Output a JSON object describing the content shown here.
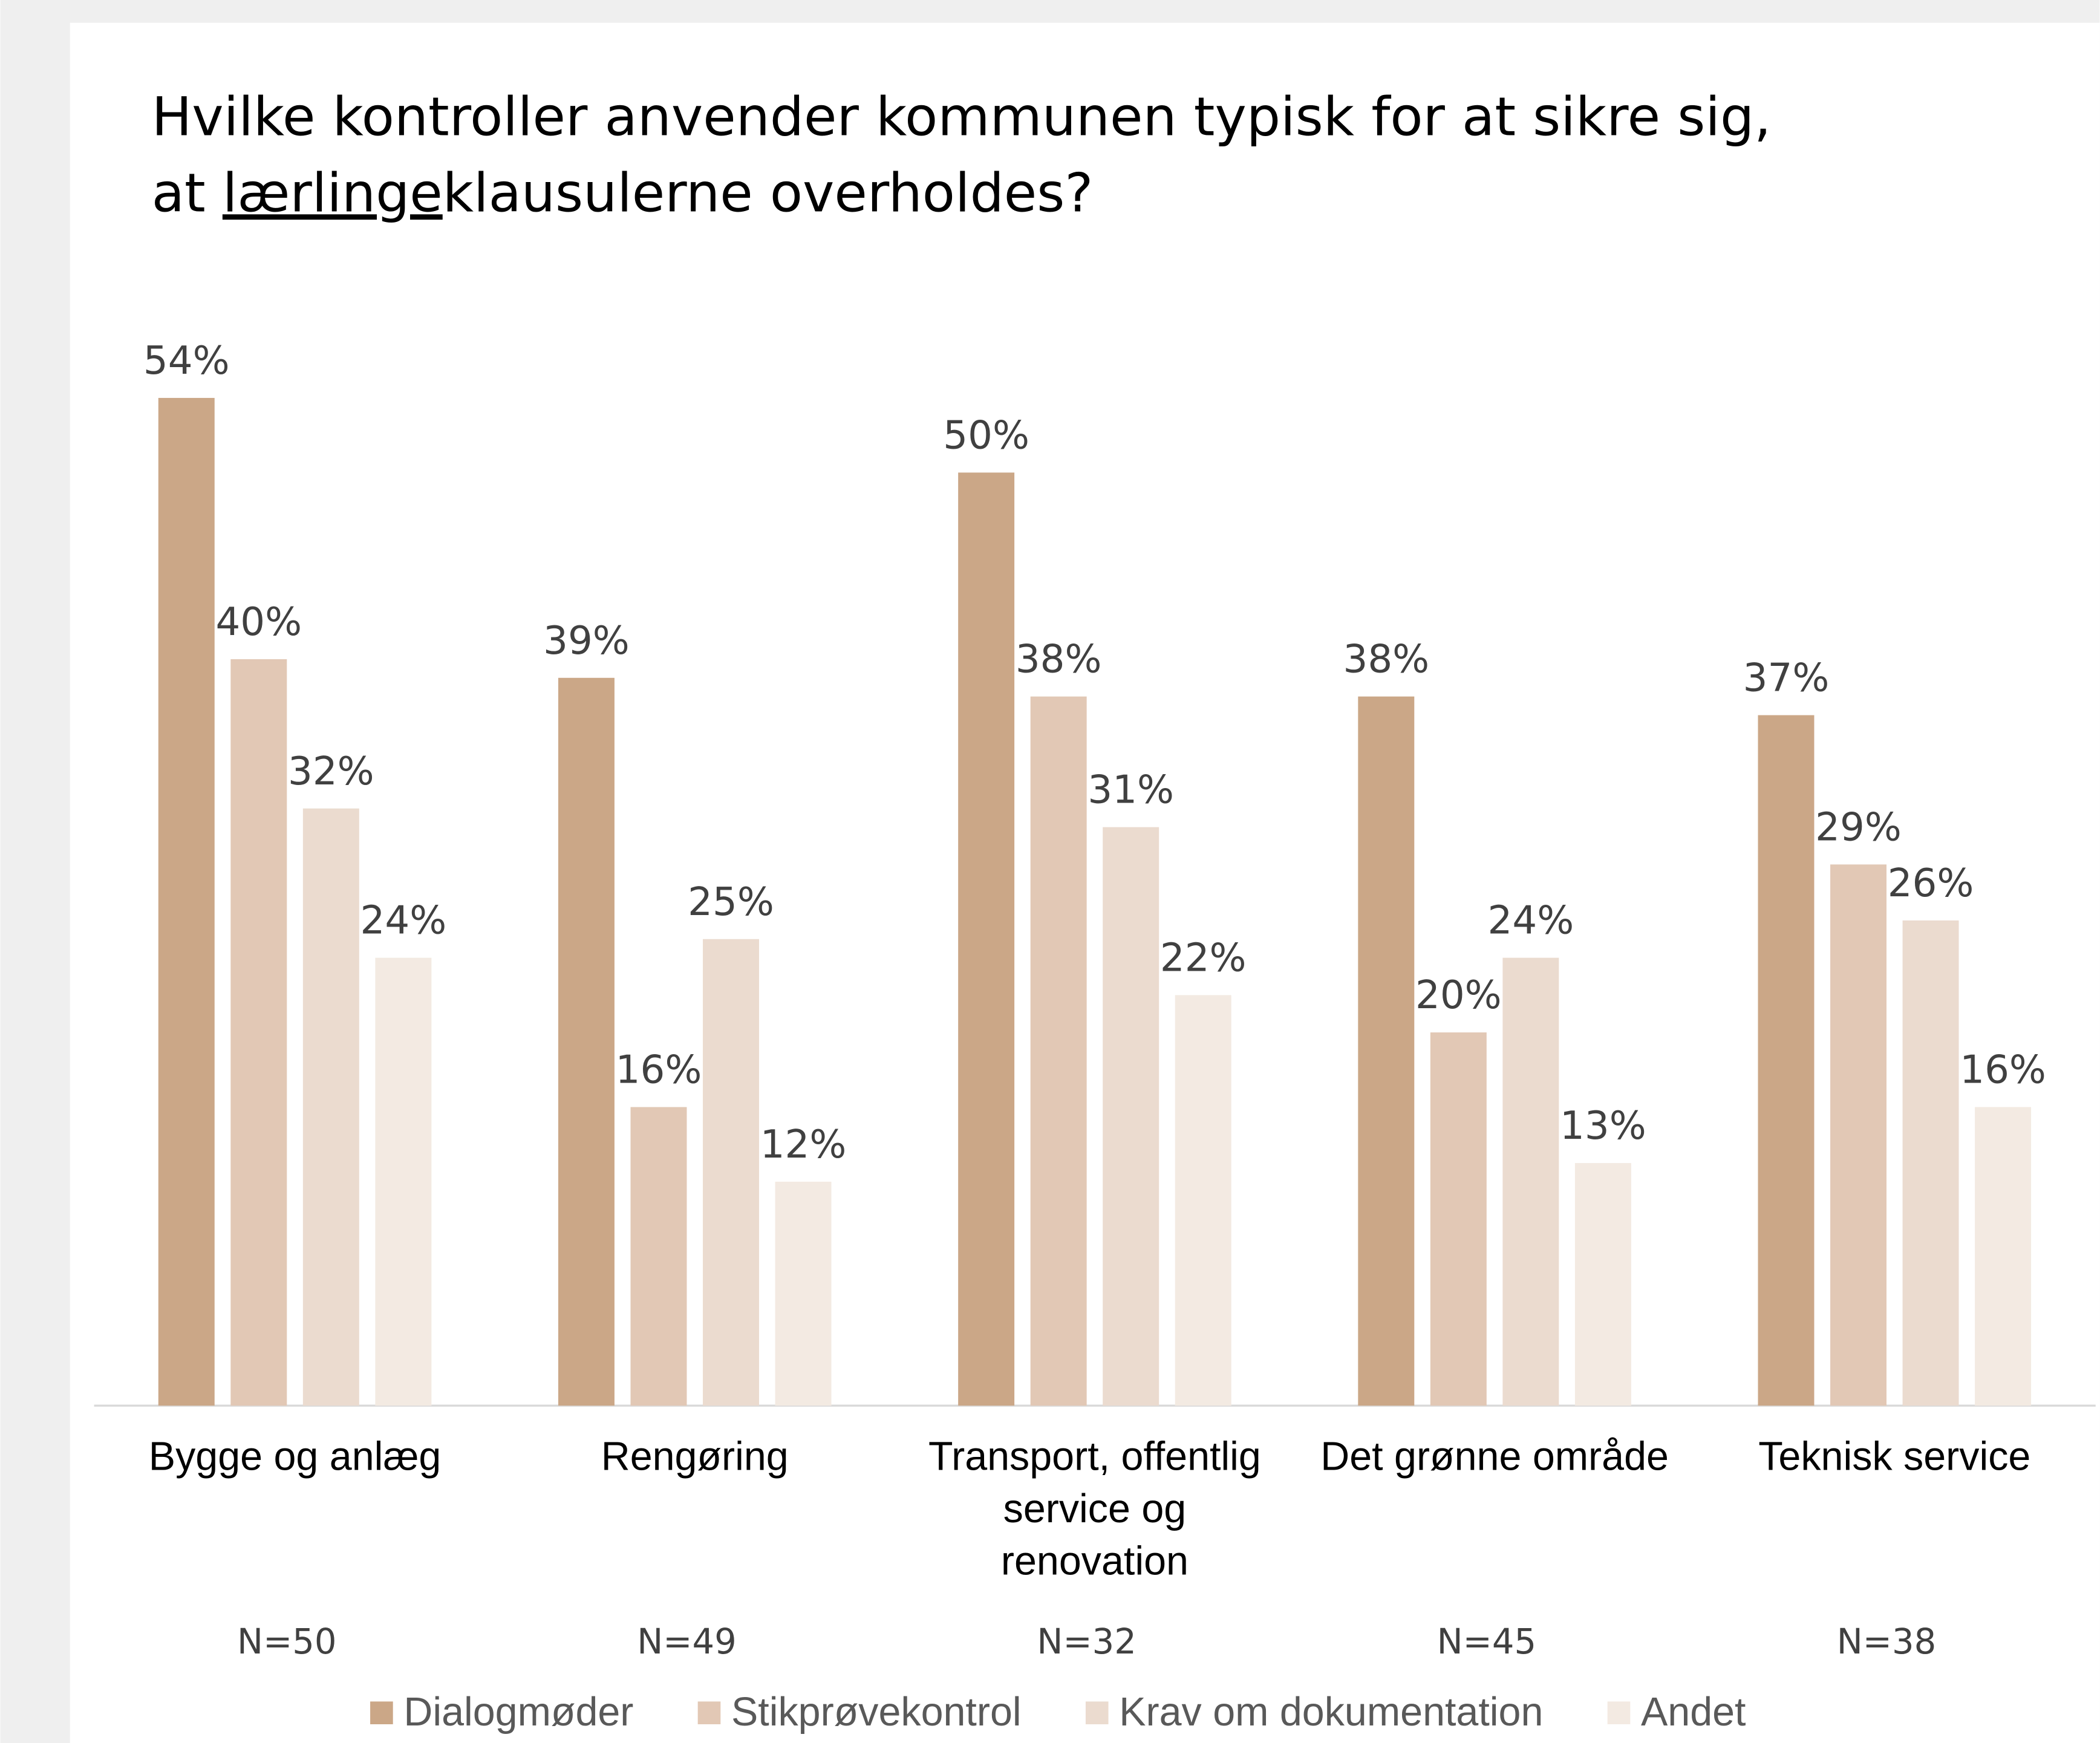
{
  "chart_data": {
    "type": "bar",
    "title": [
      "Hvilke kontroller anvender kommunen typisk for at sikre sig,",
      "at lærlingeklausulerne overholdes?"
    ],
    "title_underline": "lærlinge",
    "categories": [
      "Bygge og anlæg",
      "Rengøring",
      "Transport, offentlig service og renovation",
      "Det grønne område",
      "Teknisk service"
    ],
    "category_notes": [
      "N=50",
      "N=49",
      "N=32",
      "N=45",
      "N=38"
    ],
    "series": [
      {
        "name": "Dialogmøder",
        "color": "#CBA787",
        "values": [
          54,
          39,
          50,
          38,
          37
        ],
        "value_labels": [
          "54%",
          "39%",
          "50%",
          "38%",
          "37%"
        ]
      },
      {
        "name": "Stikprøvekontrol",
        "color": "#E2C8B5",
        "values": [
          40,
          16,
          38,
          20,
          29
        ],
        "value_labels": [
          "40%",
          "16%",
          "38%",
          "20%",
          "29%"
        ]
      },
      {
        "name": "Krav om dokumentation",
        "color": "#EBDBCF",
        "values": [
          32,
          25,
          31,
          24,
          26
        ],
        "value_labels": [
          "32%",
          "25%",
          "31%",
          "24%",
          "26%"
        ]
      },
      {
        "name": "Andet",
        "color": "#F3EAE2",
        "values": [
          24,
          12,
          22,
          13,
          16
        ],
        "value_labels": [
          "24%",
          "12%",
          "22%",
          "13%",
          "16%"
        ]
      }
    ],
    "legend": "bottom"
  }
}
